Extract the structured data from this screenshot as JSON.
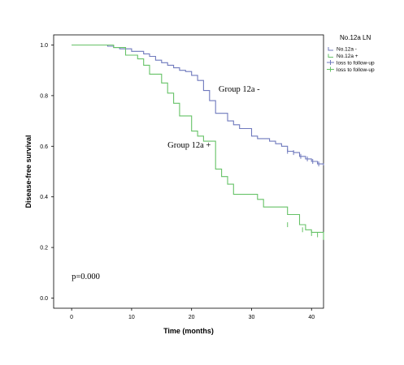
{
  "chart_data": {
    "type": "line",
    "step": true,
    "xlabel": "Time (months)",
    "ylabel": "Disease-free survival",
    "xlim": [
      -3,
      42
    ],
    "ylim": [
      -0.04,
      1.04
    ],
    "x_ticks": [
      0,
      10,
      20,
      30,
      40
    ],
    "y_ticks": [
      0.0,
      0.2,
      0.4,
      0.6,
      0.8,
      1.0
    ],
    "x_tick_labels": [
      "0",
      "10",
      "20",
      "30",
      "40"
    ],
    "y_tick_labels": [
      "0.0",
      "0.2",
      "0.4",
      "0.6",
      "0.8",
      "1.0"
    ],
    "grid": false,
    "legend": {
      "title": "No.12a LN",
      "placement": "right",
      "entries": [
        {
          "label": "No.12a -",
          "color": "#6f79bd",
          "kind": "line"
        },
        {
          "label": "No.12a +",
          "color": "#66c267",
          "kind": "line"
        },
        {
          "label": "loss to follow-up",
          "color": "#6f79bd",
          "kind": "censor"
        },
        {
          "label": "loss to follow-up",
          "color": "#66c267",
          "kind": "censor"
        }
      ]
    },
    "annotations": [
      {
        "text": "Group 12a -",
        "x": 24.5,
        "y": 0.815
      },
      {
        "text": "Group 12a +",
        "x": 16,
        "y": 0.595
      },
      {
        "text": "p=0.000",
        "x": 0,
        "y": 0.075
      }
    ],
    "series": [
      {
        "name": "No.12a -",
        "color": "#6f79bd",
        "x": [
          0,
          6,
          7,
          8,
          10,
          12,
          13,
          14,
          15,
          16,
          17,
          18,
          19,
          20,
          21,
          22,
          23,
          24,
          26,
          27,
          28,
          30,
          31,
          33,
          34,
          35,
          36,
          37,
          38,
          39,
          40,
          41,
          42
        ],
        "y": [
          1.0,
          0.995,
          0.99,
          0.985,
          0.975,
          0.965,
          0.955,
          0.94,
          0.93,
          0.92,
          0.91,
          0.9,
          0.895,
          0.88,
          0.86,
          0.82,
          0.78,
          0.73,
          0.7,
          0.685,
          0.67,
          0.64,
          0.63,
          0.62,
          0.61,
          0.6,
          0.58,
          0.575,
          0.56,
          0.55,
          0.54,
          0.53,
          0.525
        ],
        "censored": [
          {
            "x": 36,
            "y": 0.58
          },
          {
            "x": 37,
            "y": 0.575
          },
          {
            "x": 38.2,
            "y": 0.56
          },
          {
            "x": 39.3,
            "y": 0.55
          },
          {
            "x": 40.2,
            "y": 0.54
          },
          {
            "x": 41.2,
            "y": 0.53
          }
        ]
      },
      {
        "name": "No.12a +",
        "color": "#66c267",
        "x": [
          0,
          7,
          9,
          11,
          12,
          13,
          15,
          16,
          17,
          18,
          20,
          21,
          22,
          24,
          25,
          26,
          27,
          31,
          32,
          36,
          38,
          39,
          40,
          42
        ],
        "y": [
          1.0,
          0.99,
          0.96,
          0.945,
          0.92,
          0.885,
          0.85,
          0.81,
          0.77,
          0.72,
          0.66,
          0.64,
          0.62,
          0.51,
          0.48,
          0.45,
          0.41,
          0.39,
          0.36,
          0.33,
          0.29,
          0.27,
          0.26,
          0.23
        ],
        "censored": [
          {
            "x": 36,
            "y": 0.29
          },
          {
            "x": 38.5,
            "y": 0.27
          },
          {
            "x": 40,
            "y": 0.255
          },
          {
            "x": 41,
            "y": 0.25
          }
        ]
      }
    ]
  }
}
